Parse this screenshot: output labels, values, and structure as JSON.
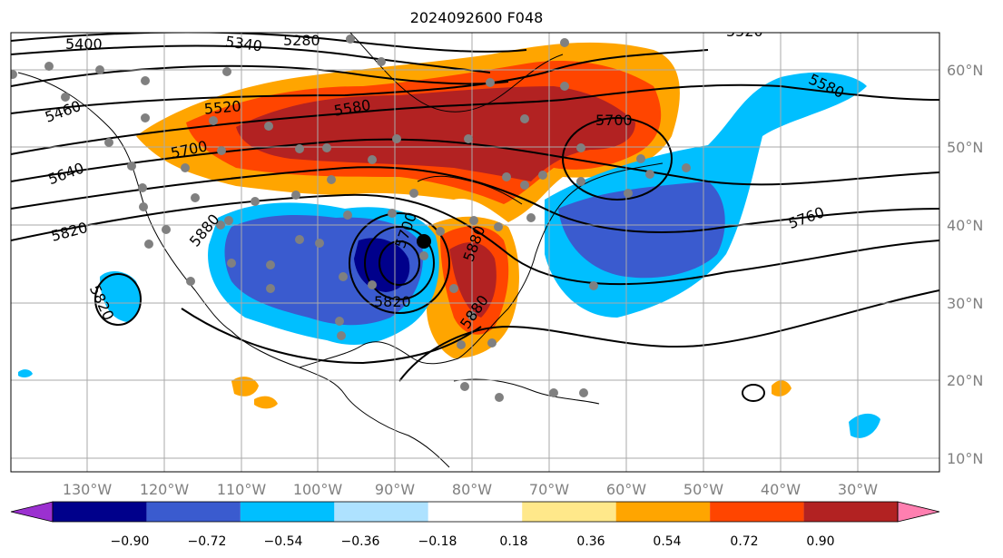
{
  "title": "2024092600 F048",
  "lon_labels": [
    "130°W",
    "120°W",
    "110°W",
    "100°W",
    "90°W",
    "80°W",
    "70°W",
    "60°W",
    "50°W",
    "40°W",
    "30°W"
  ],
  "lat_labels": [
    "60°N",
    "50°N",
    "40°N",
    "30°N",
    "20°N",
    "10°N"
  ],
  "contour_labels": [
    "5400",
    "5340",
    "5280",
    "5520",
    "5460",
    "5580",
    "5640",
    "5700",
    "5700",
    "5820",
    "5880",
    "5700",
    "5820",
    "5880",
    "5880",
    "5580",
    "5760",
    "5820",
    "5520"
  ],
  "colorbar": {
    "ticks": [
      "−0.90",
      "−0.72",
      "−0.54",
      "−0.36",
      "−0.18",
      "0.18",
      "0.36",
      "0.54",
      "0.72",
      "0.90"
    ],
    "colors": [
      "#9b30d0",
      "#00008b",
      "#3a5bcf",
      "#00bfff",
      "#aee2ff",
      "#ffffff",
      "#ffe88a",
      "#ffa500",
      "#ff4500",
      "#b22222",
      "#ff7fb0"
    ]
  },
  "colors": {
    "neg_dark": "#00008b",
    "neg_mid": "#3a5bcf",
    "neg_light": "#00bfff",
    "pos_orange": "#ffa500",
    "pos_red": "#ff4500",
    "pos_dark": "#b22222",
    "station": "#808080"
  }
}
